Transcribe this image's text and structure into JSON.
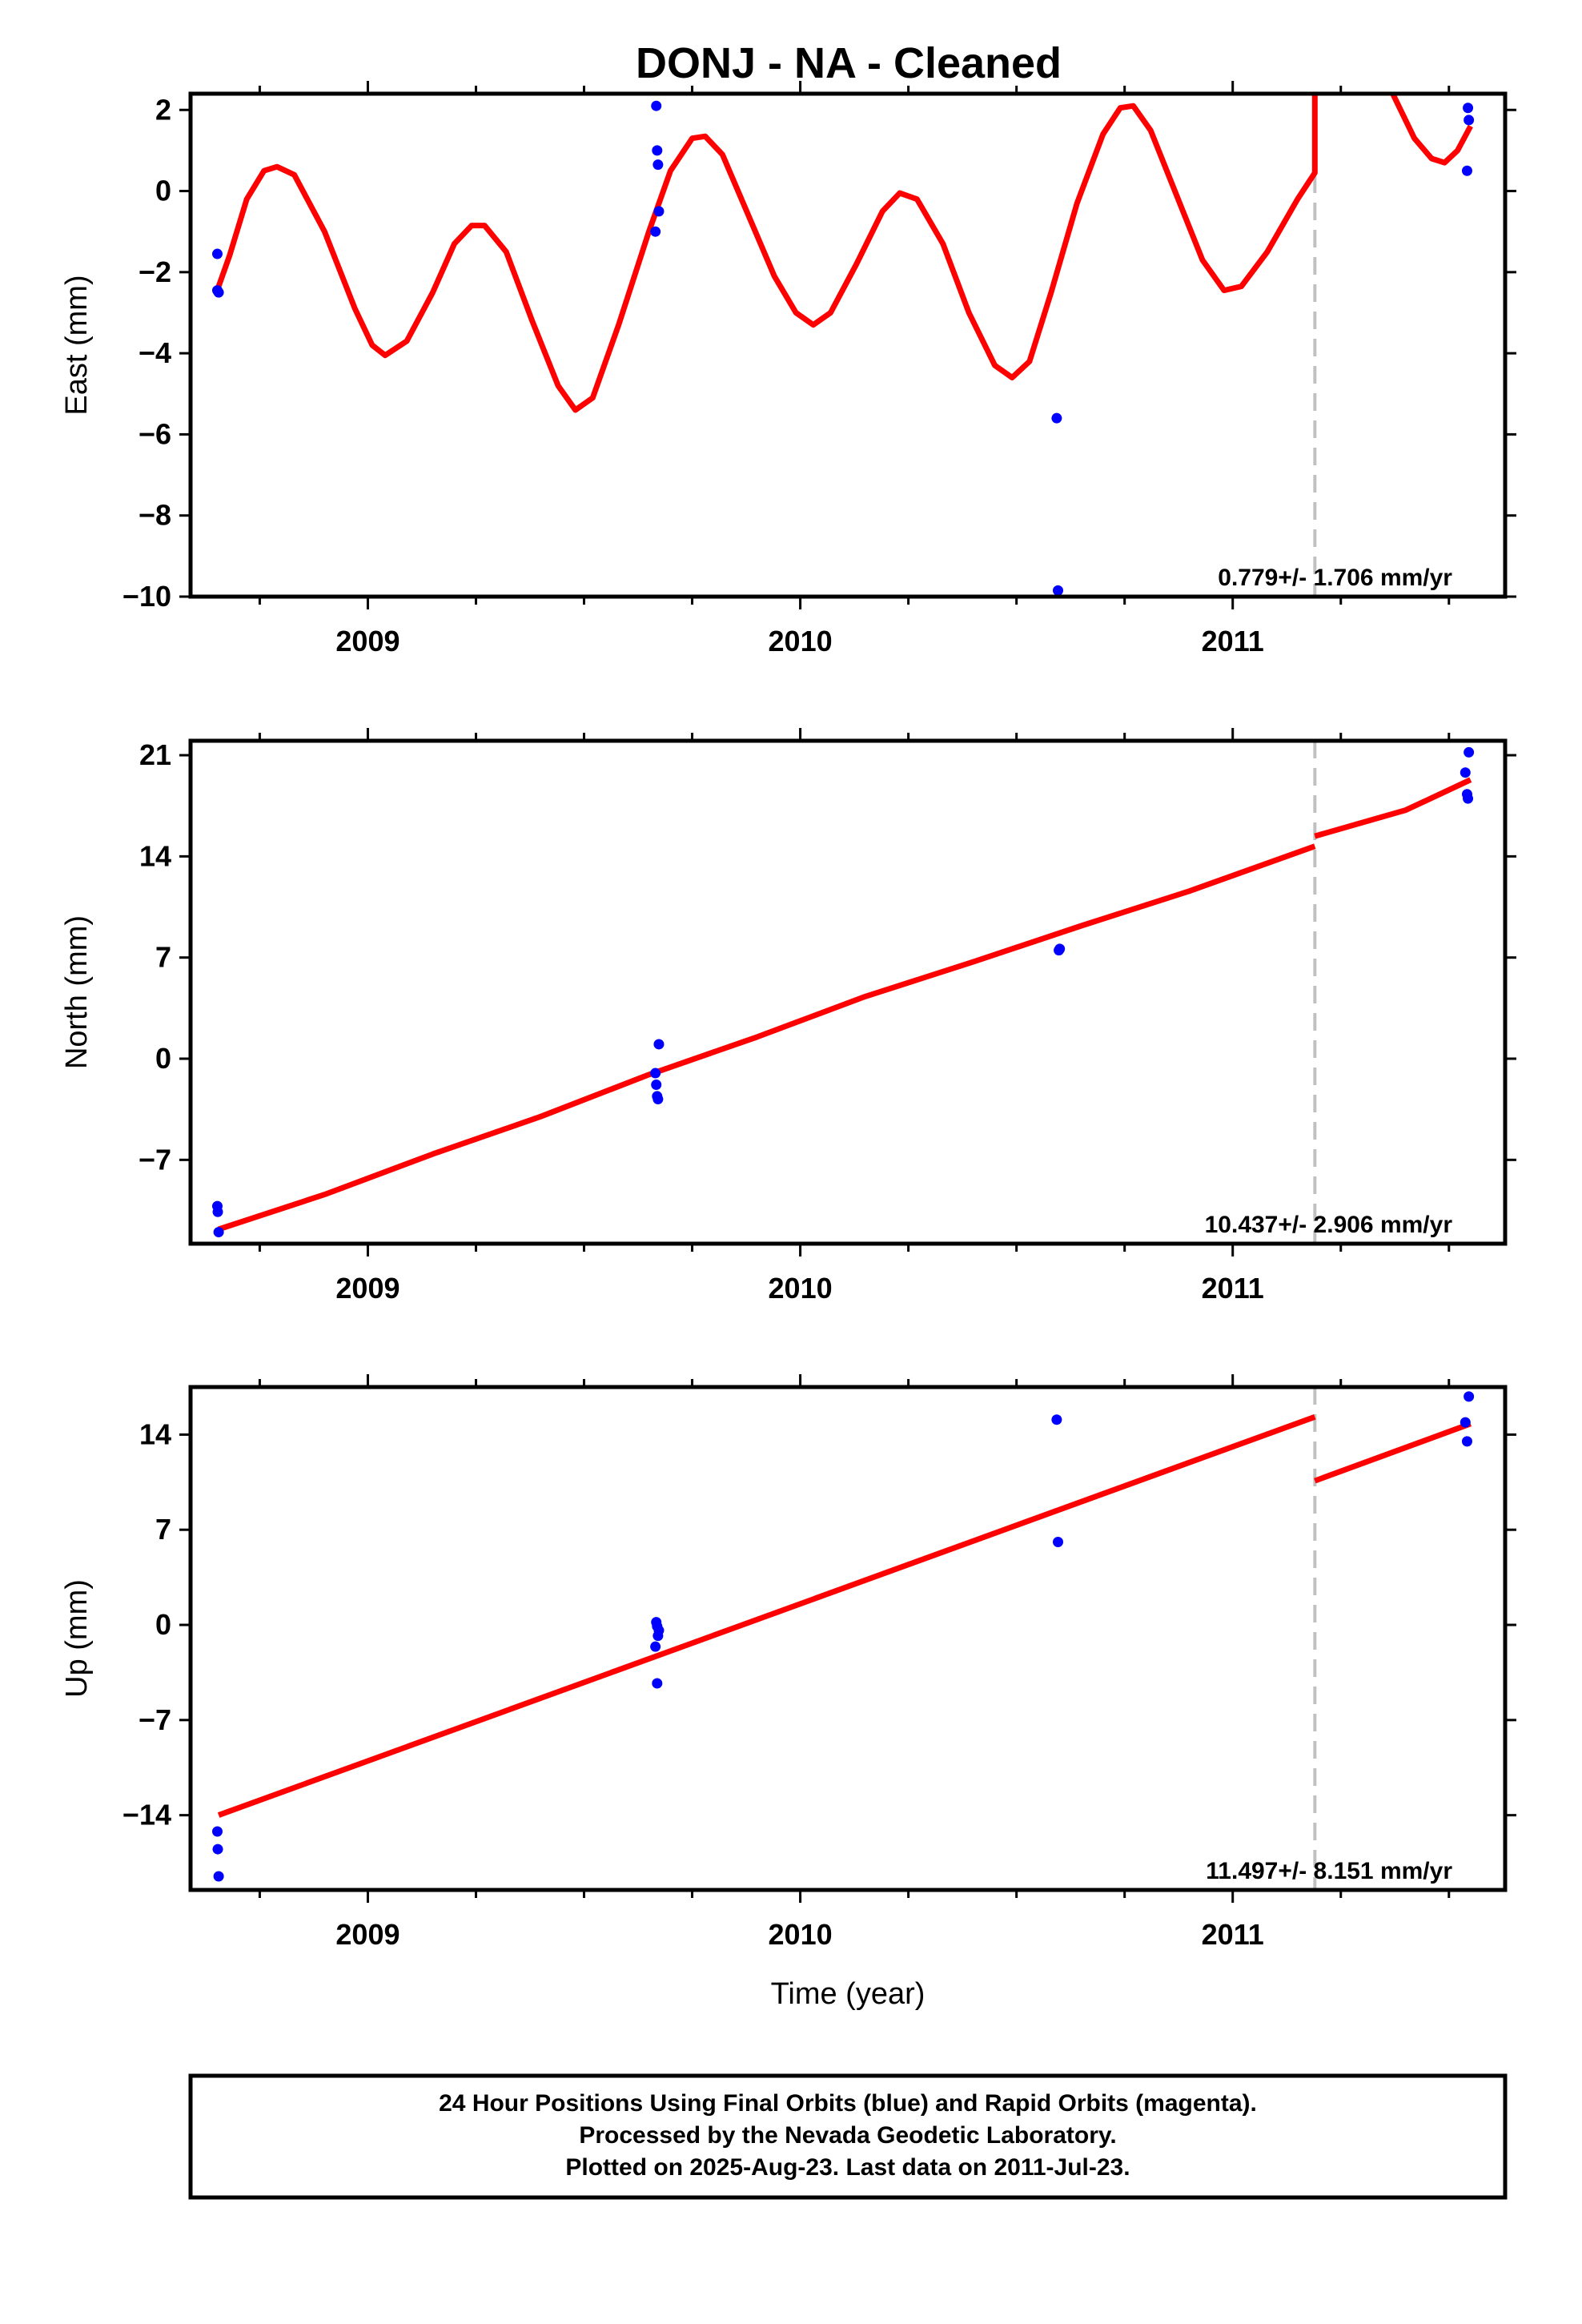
{
  "title": "DONJ  - NA - Cleaned",
  "footer": {
    "lines": [
      "24 Hour Positions Using Final Orbits (blue) and Rapid Orbits (magenta).",
      "Processed by the Nevada Geodetic Laboratory.",
      "Plotted on 2025-Aug-23. Last data on 2011-Jul-23."
    ]
  },
  "colors": {
    "final_orbit_points": "#0000ff",
    "rapid_orbit_points": "#ff00ff",
    "model_line": "#ff0000",
    "equipment_change_line": "#c0c0c0"
  },
  "chart_data": [
    {
      "type": "scatter",
      "name": "east",
      "ylabel": "East (mm)",
      "xlabel": "",
      "xlim": [
        2008.59,
        2011.63
      ],
      "ylim": [
        -10,
        2.4
      ],
      "yticks": [
        2,
        0,
        -2,
        -4,
        -6,
        -8,
        -10
      ],
      "xticks": [
        2009,
        2010,
        2011
      ],
      "rate_label": "0.779+/- 1.706 mm/yr",
      "offset_epoch": 2011.19,
      "points": [
        [
          2008.652,
          -1.55
        ],
        [
          2008.652,
          -2.45
        ],
        [
          2008.655,
          -2.5
        ],
        [
          2009.667,
          2.1
        ],
        [
          2009.669,
          1.0
        ],
        [
          2009.671,
          0.65
        ],
        [
          2009.673,
          -0.5
        ],
        [
          2009.665,
          -1.0
        ],
        [
          2010.593,
          -5.6
        ],
        [
          2010.596,
          -9.85
        ],
        [
          2011.544,
          2.05
        ],
        [
          2011.546,
          1.75
        ],
        [
          2011.542,
          0.5
        ]
      ],
      "model": [
        [
          2008.655,
          -2.35
        ],
        [
          2008.68,
          -1.6
        ],
        [
          2008.72,
          -0.2
        ],
        [
          2008.76,
          0.5
        ],
        [
          2008.79,
          0.6
        ],
        [
          2008.83,
          0.4
        ],
        [
          2008.9,
          -1.0
        ],
        [
          2008.97,
          -2.9
        ],
        [
          2009.01,
          -3.8
        ],
        [
          2009.04,
          -4.05
        ],
        [
          2009.09,
          -3.7
        ],
        [
          2009.15,
          -2.5
        ],
        [
          2009.2,
          -1.3
        ],
        [
          2009.24,
          -0.85
        ],
        [
          2009.27,
          -0.85
        ],
        [
          2009.32,
          -1.5
        ],
        [
          2009.38,
          -3.2
        ],
        [
          2009.44,
          -4.8
        ],
        [
          2009.48,
          -5.4
        ],
        [
          2009.52,
          -5.1
        ],
        [
          2009.58,
          -3.3
        ],
        [
          2009.65,
          -1.0
        ],
        [
          2009.7,
          0.5
        ],
        [
          2009.75,
          1.3
        ],
        [
          2009.78,
          1.35
        ],
        [
          2009.82,
          0.9
        ],
        [
          2009.88,
          -0.6
        ],
        [
          2009.94,
          -2.1
        ],
        [
          2009.99,
          -3.0
        ],
        [
          2010.03,
          -3.3
        ],
        [
          2010.07,
          -3.0
        ],
        [
          2010.13,
          -1.8
        ],
        [
          2010.19,
          -0.5
        ],
        [
          2010.23,
          -0.05
        ],
        [
          2010.27,
          -0.2
        ],
        [
          2010.33,
          -1.3
        ],
        [
          2010.39,
          -3.0
        ],
        [
          2010.45,
          -4.3
        ],
        [
          2010.49,
          -4.6
        ],
        [
          2010.53,
          -4.2
        ],
        [
          2010.58,
          -2.5
        ],
        [
          2010.64,
          -0.3
        ],
        [
          2010.7,
          1.4
        ],
        [
          2010.74,
          2.05
        ],
        [
          2010.77,
          2.1
        ],
        [
          2010.81,
          1.5
        ],
        [
          2010.87,
          -0.1
        ],
        [
          2010.93,
          -1.7
        ],
        [
          2010.98,
          -2.45
        ],
        [
          2011.02,
          -2.35
        ],
        [
          2011.08,
          -1.5
        ],
        [
          2011.15,
          -0.2
        ],
        [
          2011.19,
          0.45
        ],
        [
          2011.19,
          2.4
        ]
      ],
      "model_after": [
        [
          2011.37,
          2.4
        ],
        [
          2011.42,
          1.3
        ],
        [
          2011.46,
          0.8
        ],
        [
          2011.49,
          0.7
        ],
        [
          2011.52,
          1.0
        ],
        [
          2011.55,
          1.6
        ]
      ]
    },
    {
      "type": "scatter",
      "name": "north",
      "ylabel": "North (mm)",
      "xlabel": "",
      "xlim": [
        2008.59,
        2011.63
      ],
      "ylim": [
        -12.8,
        22
      ],
      "yticks": [
        21,
        14,
        7,
        0,
        -7
      ],
      "xticks": [
        2009,
        2010,
        2011
      ],
      "rate_label": "10.437+/- 2.906 mm/yr",
      "offset_epoch": 2011.19,
      "points": [
        [
          2008.652,
          -10.2
        ],
        [
          2008.653,
          -10.6
        ],
        [
          2008.655,
          -12.0
        ],
        [
          2009.665,
          -1.0
        ],
        [
          2009.667,
          -1.8
        ],
        [
          2009.669,
          -2.6
        ],
        [
          2009.671,
          -2.8
        ],
        [
          2009.673,
          1.0
        ],
        [
          2010.598,
          7.5
        ],
        [
          2010.6,
          7.6
        ],
        [
          2011.538,
          19.8
        ],
        [
          2011.542,
          18.3
        ],
        [
          2011.544,
          18.0
        ],
        [
          2011.546,
          21.2
        ]
      ],
      "model": [
        [
          2008.655,
          -11.8
        ],
        [
          2008.9,
          -9.4
        ],
        [
          2009.15,
          -6.6
        ],
        [
          2009.4,
          -4.0
        ],
        [
          2009.65,
          -1.1
        ],
        [
          2009.9,
          1.5
        ],
        [
          2010.15,
          4.3
        ],
        [
          2010.4,
          6.7
        ],
        [
          2010.65,
          9.2
        ],
        [
          2010.9,
          11.6
        ],
        [
          2011.19,
          14.7
        ]
      ],
      "model_after": [
        [
          2011.19,
          15.4
        ],
        [
          2011.4,
          17.2
        ],
        [
          2011.55,
          19.3
        ]
      ]
    },
    {
      "type": "scatter",
      "name": "up",
      "ylabel": "Up (mm)",
      "xlabel": "Time (year)",
      "xlim": [
        2008.59,
        2011.63
      ],
      "ylim": [
        -19.5,
        17.5
      ],
      "yticks": [
        14,
        7,
        0,
        -7,
        -14
      ],
      "xticks": [
        2009,
        2010,
        2011
      ],
      "rate_label": "11.497+/- 8.151 mm/yr",
      "offset_epoch": 2011.19,
      "points": [
        [
          2008.652,
          -15.2
        ],
        [
          2008.653,
          -16.5
        ],
        [
          2008.655,
          -18.5
        ],
        [
          2009.665,
          -1.6
        ],
        [
          2009.667,
          0.2
        ],
        [
          2009.669,
          -0.1
        ],
        [
          2009.671,
          -0.8
        ],
        [
          2009.673,
          -0.4
        ],
        [
          2009.669,
          -4.3
        ],
        [
          2010.593,
          15.1
        ],
        [
          2010.596,
          6.1
        ],
        [
          2011.538,
          14.9
        ],
        [
          2011.542,
          13.5
        ],
        [
          2011.546,
          16.8
        ]
      ],
      "model": [
        [
          2008.655,
          -14.0
        ],
        [
          2011.19,
          15.3
        ]
      ],
      "model_after": [
        [
          2011.19,
          10.6
        ],
        [
          2011.55,
          14.8
        ]
      ]
    }
  ]
}
